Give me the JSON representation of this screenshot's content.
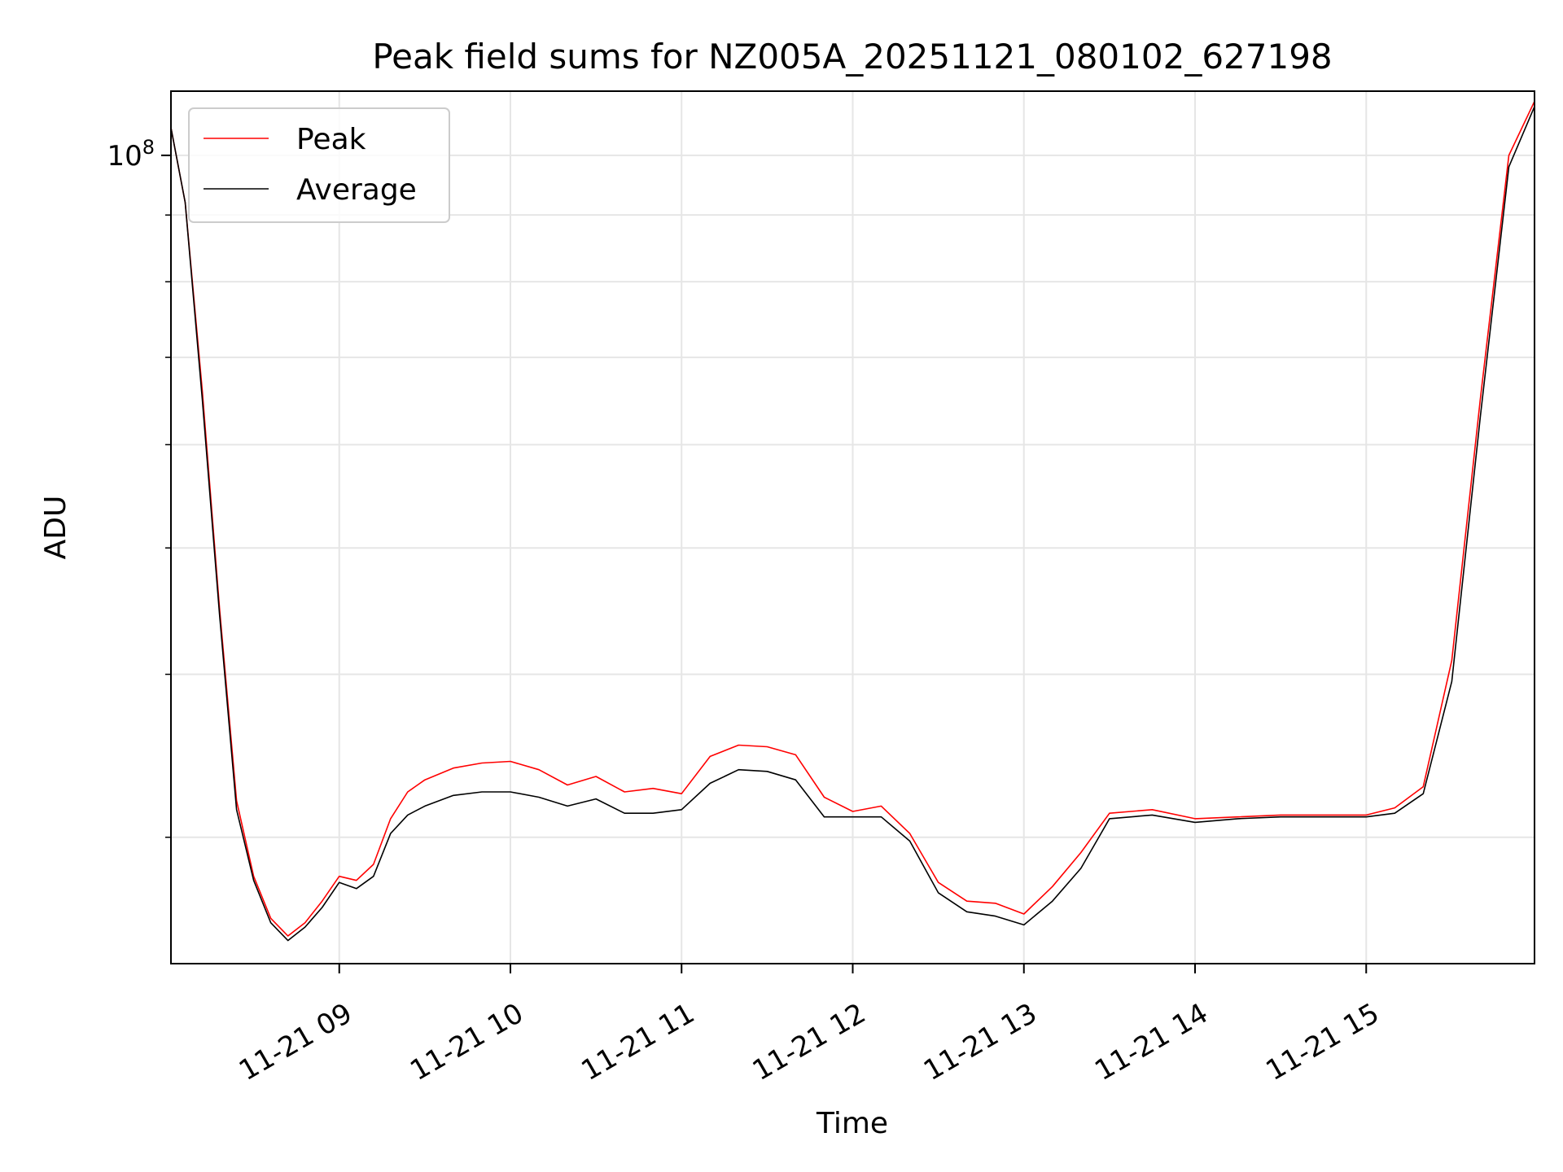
{
  "chart_data": {
    "type": "line",
    "title": "Peak field sums for NZ005A_20251121_080102_627198",
    "xlabel": "Time",
    "ylabel": "ADU",
    "y_scale": "log",
    "ylim": [
      24000000,
      112000000
    ],
    "xlim": [
      "2025-11-21 08:01",
      "2025-11-21 15:59"
    ],
    "x_ticks": [
      {
        "value": "2025-11-21 09:00",
        "label": "11-21 09"
      },
      {
        "value": "2025-11-21 10:00",
        "label": "11-21 10"
      },
      {
        "value": "2025-11-21 11:00",
        "label": "11-21 11"
      },
      {
        "value": "2025-11-21 12:00",
        "label": "11-21 12"
      },
      {
        "value": "2025-11-21 13:00",
        "label": "11-21 13"
      },
      {
        "value": "2025-11-21 14:00",
        "label": "11-21 14"
      },
      {
        "value": "2025-11-21 15:00",
        "label": "11-21 15"
      }
    ],
    "y_ticks": [
      {
        "value": 100000000,
        "label_base": "10",
        "label_exp": "8"
      }
    ],
    "y_minor_ticks": [
      30000000,
      40000000,
      50000000,
      60000000,
      70000000,
      80000000,
      90000000
    ],
    "grid": true,
    "legend": {
      "position": "top-left"
    },
    "series": [
      {
        "name": "Peak",
        "color": "#ff0000",
        "x": [
          "2025-11-21 08:01",
          "2025-11-21 08:06",
          "2025-11-21 08:12",
          "2025-11-21 08:18",
          "2025-11-21 08:24",
          "2025-11-21 08:30",
          "2025-11-21 08:36",
          "2025-11-21 08:42",
          "2025-11-21 08:48",
          "2025-11-21 08:54",
          "2025-11-21 09:00",
          "2025-11-21 09:06",
          "2025-11-21 09:12",
          "2025-11-21 09:18",
          "2025-11-21 09:24",
          "2025-11-21 09:30",
          "2025-11-21 09:40",
          "2025-11-21 09:50",
          "2025-11-21 10:00",
          "2025-11-21 10:10",
          "2025-11-21 10:20",
          "2025-11-21 10:30",
          "2025-11-21 10:40",
          "2025-11-21 10:50",
          "2025-11-21 11:00",
          "2025-11-21 11:10",
          "2025-11-21 11:20",
          "2025-11-21 11:30",
          "2025-11-21 11:40",
          "2025-11-21 11:50",
          "2025-11-21 12:00",
          "2025-11-21 12:10",
          "2025-11-21 12:20",
          "2025-11-21 12:30",
          "2025-11-21 12:40",
          "2025-11-21 12:50",
          "2025-11-21 13:00",
          "2025-11-21 13:10",
          "2025-11-21 13:20",
          "2025-11-21 13:30",
          "2025-11-21 13:45",
          "2025-11-21 14:00",
          "2025-11-21 14:15",
          "2025-11-21 14:30",
          "2025-11-21 14:45",
          "2025-11-21 15:00",
          "2025-11-21 15:10",
          "2025-11-21 15:20",
          "2025-11-21 15:30",
          "2025-11-21 15:40",
          "2025-11-21 15:50",
          "2025-11-21 15:59"
        ],
        "y": [
          105000000,
          92000000,
          66000000,
          45000000,
          32000000,
          28000000,
          26000000,
          25200000,
          25800000,
          26800000,
          28000000,
          27800000,
          28600000,
          31000000,
          32500000,
          33200000,
          33900000,
          34200000,
          34300000,
          33800000,
          32900000,
          33400000,
          32500000,
          32700000,
          32400000,
          34600000,
          35300000,
          35200000,
          34700000,
          32200000,
          31400000,
          31700000,
          30200000,
          27700000,
          26800000,
          26700000,
          26200000,
          27500000,
          29200000,
          31300000,
          31500000,
          31000000,
          31100000,
          31200000,
          31200000,
          31200000,
          31600000,
          32800000,
          41000000,
          65000000,
          100000000,
          110000000
        ]
      },
      {
        "name": "Average",
        "color": "#000000",
        "x": [
          "2025-11-21 08:01",
          "2025-11-21 08:06",
          "2025-11-21 08:12",
          "2025-11-21 08:18",
          "2025-11-21 08:24",
          "2025-11-21 08:30",
          "2025-11-21 08:36",
          "2025-11-21 08:42",
          "2025-11-21 08:48",
          "2025-11-21 08:54",
          "2025-11-21 09:00",
          "2025-11-21 09:06",
          "2025-11-21 09:12",
          "2025-11-21 09:18",
          "2025-11-21 09:24",
          "2025-11-21 09:30",
          "2025-11-21 09:40",
          "2025-11-21 09:50",
          "2025-11-21 10:00",
          "2025-11-21 10:10",
          "2025-11-21 10:20",
          "2025-11-21 10:30",
          "2025-11-21 10:40",
          "2025-11-21 10:50",
          "2025-11-21 11:00",
          "2025-11-21 11:10",
          "2025-11-21 11:20",
          "2025-11-21 11:30",
          "2025-11-21 11:40",
          "2025-11-21 11:50",
          "2025-11-21 12:00",
          "2025-11-21 12:10",
          "2025-11-21 12:20",
          "2025-11-21 12:30",
          "2025-11-21 12:40",
          "2025-11-21 12:50",
          "2025-11-21 13:00",
          "2025-11-21 13:10",
          "2025-11-21 13:20",
          "2025-11-21 13:30",
          "2025-11-21 13:45",
          "2025-11-21 14:00",
          "2025-11-21 14:15",
          "2025-11-21 14:30",
          "2025-11-21 14:45",
          "2025-11-21 15:00",
          "2025-11-21 15:10",
          "2025-11-21 15:20",
          "2025-11-21 15:30",
          "2025-11-21 15:40",
          "2025-11-21 15:50",
          "2025-11-21 15:59"
        ],
        "y": [
          105000000,
          92000000,
          65000000,
          44500000,
          31500000,
          27800000,
          25800000,
          25000000,
          25600000,
          26500000,
          27700000,
          27400000,
          28000000,
          30200000,
          31200000,
          31700000,
          32300000,
          32500000,
          32500000,
          32200000,
          31700000,
          32100000,
          31300000,
          31300000,
          31500000,
          33000000,
          33800000,
          33700000,
          33200000,
          31100000,
          31100000,
          31100000,
          29800000,
          27200000,
          26300000,
          26100000,
          25700000,
          26800000,
          28400000,
          31000000,
          31200000,
          30800000,
          31000000,
          31100000,
          31100000,
          31100000,
          31300000,
          32400000,
          39500000,
          63000000,
          98000000,
          109000000
        ]
      }
    ]
  }
}
